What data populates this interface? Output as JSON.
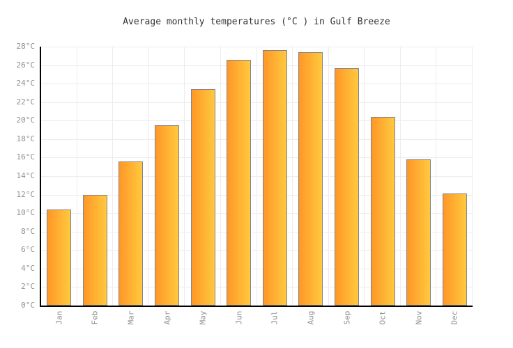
{
  "chart_data": {
    "type": "bar",
    "title": "Average monthly temperatures (°C ) in Gulf Breeze",
    "categories": [
      "Jan",
      "Feb",
      "Mar",
      "Apr",
      "May",
      "Jun",
      "Jul",
      "Aug",
      "Sep",
      "Oct",
      "Nov",
      "Dec"
    ],
    "values": [
      10.4,
      12.0,
      15.6,
      19.5,
      23.4,
      26.6,
      27.6,
      27.4,
      25.7,
      20.4,
      15.8,
      12.1
    ],
    "xlabel": "",
    "ylabel": "",
    "ylim": [
      0,
      28
    ],
    "ytick_step": 2,
    "ytick_suffix": "°C",
    "grid": true,
    "legend": "none",
    "colors": {
      "bar_gradient_left": "#ff9727",
      "bar_gradient_right": "#ffc93e",
      "bar_border": "#82828e",
      "axis": "#000000",
      "gridline": "#ececec",
      "tick_label": "#8f8f8f",
      "title_text": "#333333",
      "background": "#ffffff"
    }
  }
}
